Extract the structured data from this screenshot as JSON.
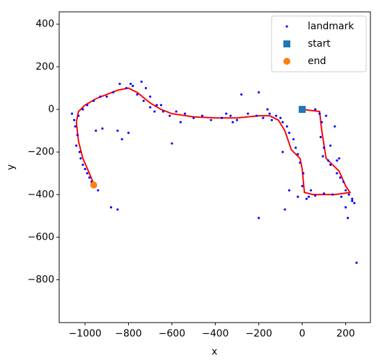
{
  "chart_data": {
    "type": "scatter",
    "xlabel": "x",
    "ylabel": "y",
    "xlim": [
      -1119,
      314
    ],
    "ylim": [
      -1001,
      458
    ],
    "xticks": [
      {
        "value": -1000,
        "label": "−1000"
      },
      {
        "value": -800,
        "label": "−800"
      },
      {
        "value": -600,
        "label": "−600"
      },
      {
        "value": -400,
        "label": "−400"
      },
      {
        "value": -200,
        "label": "−200"
      },
      0,
      200
    ],
    "yticks": [
      400,
      200,
      0,
      {
        "value": -200,
        "label": "−200"
      },
      {
        "value": -400,
        "label": "−400"
      },
      {
        "value": -600,
        "label": "−600"
      },
      {
        "value": -800,
        "label": "−800"
      }
    ],
    "legend": "upper right",
    "trajectory": {
      "color": "#ff0000",
      "x": [
        0,
        80,
        90,
        110,
        170,
        200,
        220,
        150,
        50,
        10,
        0,
        -10,
        -50,
        -80,
        -110,
        -150,
        -200,
        -300,
        -400,
        -500,
        -600,
        -650,
        -700,
        -760,
        -800,
        -850,
        -900,
        -950,
        -1000,
        -1030,
        -1040,
        -1030,
        -1010,
        -980,
        -960
      ],
      "y": [
        0,
        -10,
        -100,
        -230,
        -290,
        -360,
        -390,
        -400,
        -400,
        -390,
        -280,
        -230,
        -190,
        -100,
        -50,
        -30,
        -30,
        -40,
        -40,
        -35,
        -20,
        0,
        30,
        80,
        100,
        90,
        70,
        50,
        20,
        -10,
        -60,
        -150,
        -230,
        -300,
        -350
      ]
    },
    "series": [
      {
        "name": "landmark",
        "color": "#0000ff",
        "marker": "dot",
        "x": [
          250,
          -200,
          210,
          -850,
          -880,
          -600,
          -800,
          -850,
          -200,
          -280,
          150,
          -830,
          -920,
          -90,
          -80,
          -60,
          -950,
          60,
          90,
          85,
          100,
          95,
          120,
          130,
          160,
          175,
          190,
          200,
          215,
          230,
          180,
          140,
          100,
          60,
          30,
          0,
          5,
          -10,
          -20,
          -30,
          -40,
          -60,
          -70,
          -90,
          -100,
          -120,
          -150,
          -180,
          -210,
          -250,
          -300,
          -330,
          -370,
          -420,
          -460,
          -500,
          -540,
          -580,
          -610,
          -640,
          -670,
          -700,
          -730,
          -760,
          -780,
          -790,
          -810,
          -840,
          -870,
          -900,
          -930,
          -960,
          -990,
          -1010,
          -1030,
          -1045,
          -1035,
          -1040,
          -1025,
          -1020,
          -1010,
          -1000,
          -990,
          -980,
          -970,
          -950,
          -940,
          -1060,
          -1050,
          -700,
          -650,
          -720,
          -740,
          -680,
          -560,
          -350,
          -320,
          -160,
          -140,
          80,
          110,
          130,
          160,
          170,
          20,
          -20,
          40,
          200,
          240,
          230
        ],
        "values": [
          -720,
          -510,
          -510,
          -470,
          -460,
          -160,
          -110,
          -100,
          80,
          70,
          -80,
          -140,
          -90,
          -200,
          -470,
          -380,
          -100,
          0,
          -60,
          -130,
          -180,
          -220,
          -240,
          -260,
          -300,
          -320,
          -340,
          -380,
          -400,
          -420,
          -410,
          -400,
          -395,
          -405,
          -410,
          -360,
          -300,
          -250,
          -210,
          -180,
          -140,
          -110,
          -80,
          -60,
          -40,
          -30,
          -20,
          -40,
          -30,
          -20,
          -50,
          -30,
          -40,
          -50,
          -30,
          -40,
          -20,
          -10,
          -30,
          -10,
          20,
          10,
          40,
          70,
          110,
          120,
          100,
          120,
          80,
          60,
          60,
          40,
          20,
          0,
          -30,
          -80,
          -120,
          -170,
          -200,
          -230,
          -260,
          -280,
          -300,
          -320,
          -340,
          -360,
          -380,
          -20,
          -50,
          60,
          20,
          100,
          130,
          -10,
          -60,
          -20,
          -60,
          0,
          -50,
          -20,
          -30,
          -170,
          -240,
          -230,
          -420,
          -410,
          -380,
          -460,
          -440,
          -430
        ]
      },
      {
        "name": "start",
        "color": "#1f77b4",
        "marker": "square",
        "x": [
          0
        ],
        "values": [
          0
        ]
      },
      {
        "name": "end",
        "color": "#ff7f0e",
        "marker": "circle",
        "x": [
          -960
        ],
        "values": [
          -355
        ]
      }
    ]
  }
}
